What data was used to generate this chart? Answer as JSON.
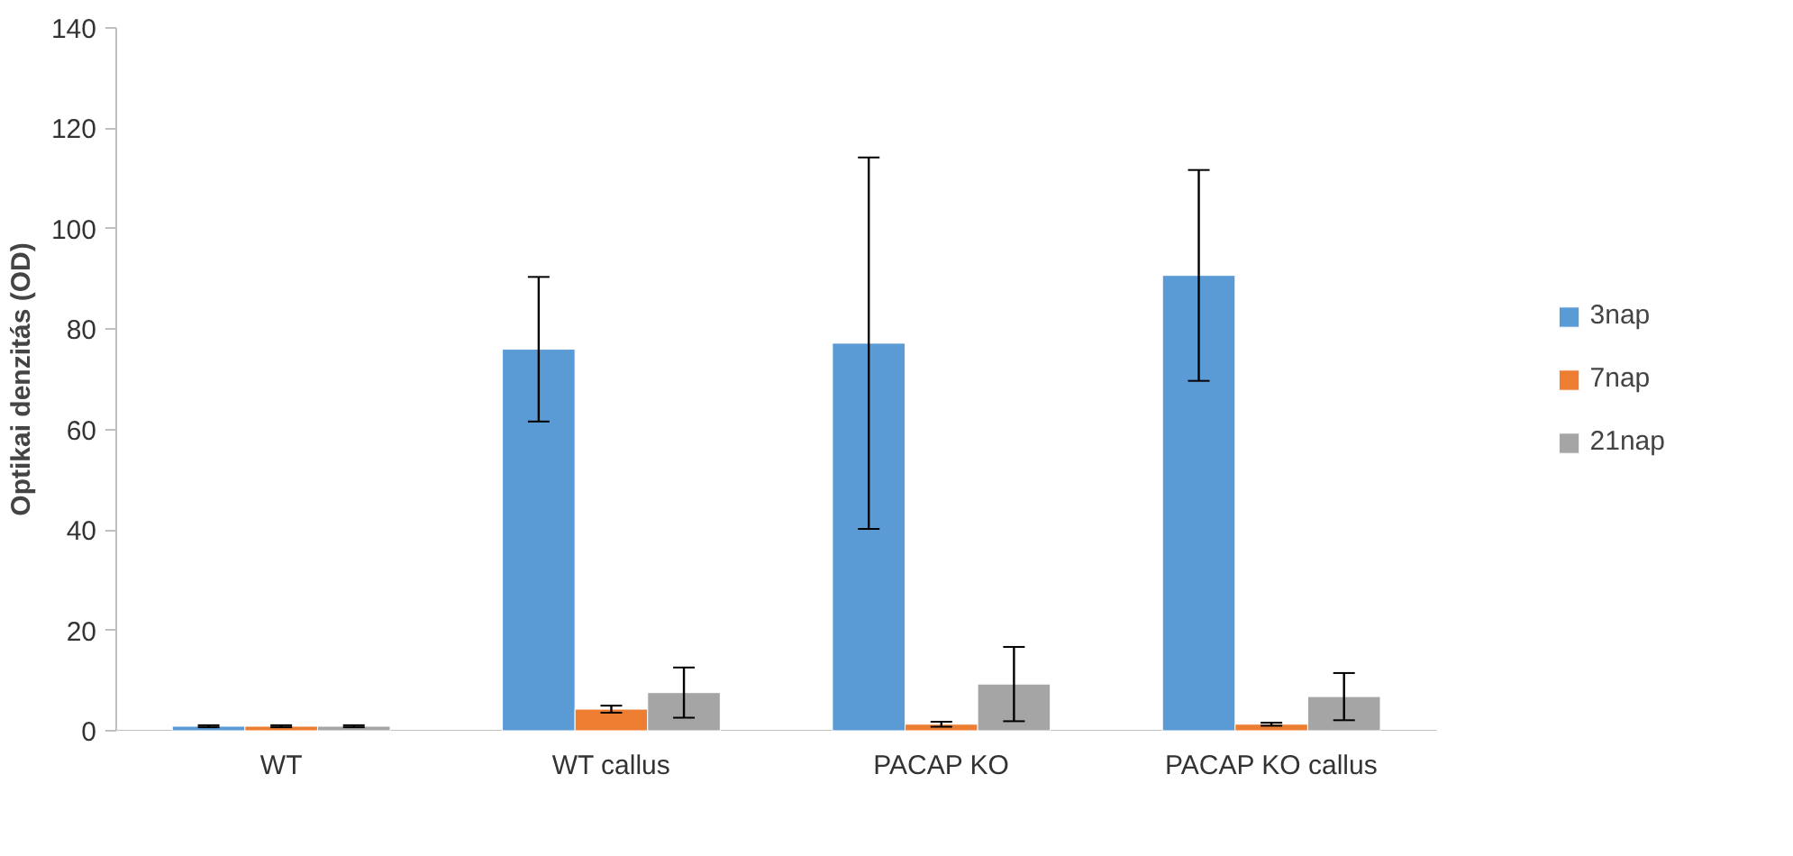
{
  "chart_data": {
    "type": "bar",
    "ylabel": "Optikai denzitás (OD)",
    "categories": [
      "WT",
      "WT callus",
      "PACAP KO",
      "PACAP KO callus"
    ],
    "series": [
      {
        "name": "3nap",
        "color": "#5b9bd5",
        "values": [
          0.9,
          76,
          77.2,
          90.7
        ],
        "errors": [
          0.2,
          14.4,
          37,
          21
        ]
      },
      {
        "name": "7nap",
        "color": "#ed7d31",
        "values": [
          0.9,
          4.3,
          1.3,
          1.3
        ],
        "errors": [
          0.2,
          0.7,
          0.5,
          0.3
        ]
      },
      {
        "name": "21nap",
        "color": "#a5a5a5",
        "values": [
          0.9,
          7.6,
          9.3,
          6.8
        ],
        "errors": [
          0.2,
          5,
          7.4,
          4.7
        ]
      }
    ],
    "ylim": [
      0,
      140
    ],
    "yticks": [
      0,
      20,
      40,
      60,
      80,
      100,
      120,
      140
    ],
    "grid": false,
    "legend": "right"
  }
}
